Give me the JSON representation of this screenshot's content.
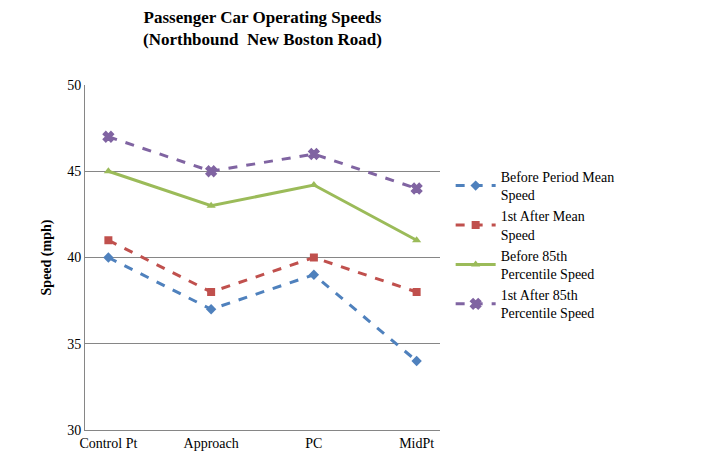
{
  "chart_data": {
    "type": "line",
    "title": "Passenger Car Operating Speeds",
    "subtitle": "(Northbound  New Boston Road)",
    "y_label": "Speed (mph)",
    "categories": [
      "Control Pt",
      "Approach",
      "PC",
      "MidPt"
    ],
    "series": [
      {
        "name": "Before Period Mean Speed",
        "color": "#4F81BD",
        "marker": "diamond",
        "line_style": "dash",
        "values": [
          40,
          37,
          39,
          34
        ]
      },
      {
        "name": "1st After Mean Speed",
        "color": "#C0504D",
        "marker": "square",
        "line_style": "dash",
        "values": [
          41,
          38,
          40,
          38
        ]
      },
      {
        "name": "Before 85th Percentile Speed",
        "color": "#9BBB59",
        "marker": "triangle-up",
        "line_style": "solid",
        "values": [
          45,
          43,
          44.2,
          41
        ]
      },
      {
        "name": "1st After 85th Percentile Speed",
        "color": "#8064A2",
        "marker": "x",
        "line_style": "dash",
        "values": [
          47,
          45,
          46,
          44
        ]
      }
    ],
    "ylim": [
      30,
      50
    ],
    "yticks": [
      30,
      35,
      40,
      45,
      50
    ],
    "grid": true,
    "legend": "right"
  }
}
